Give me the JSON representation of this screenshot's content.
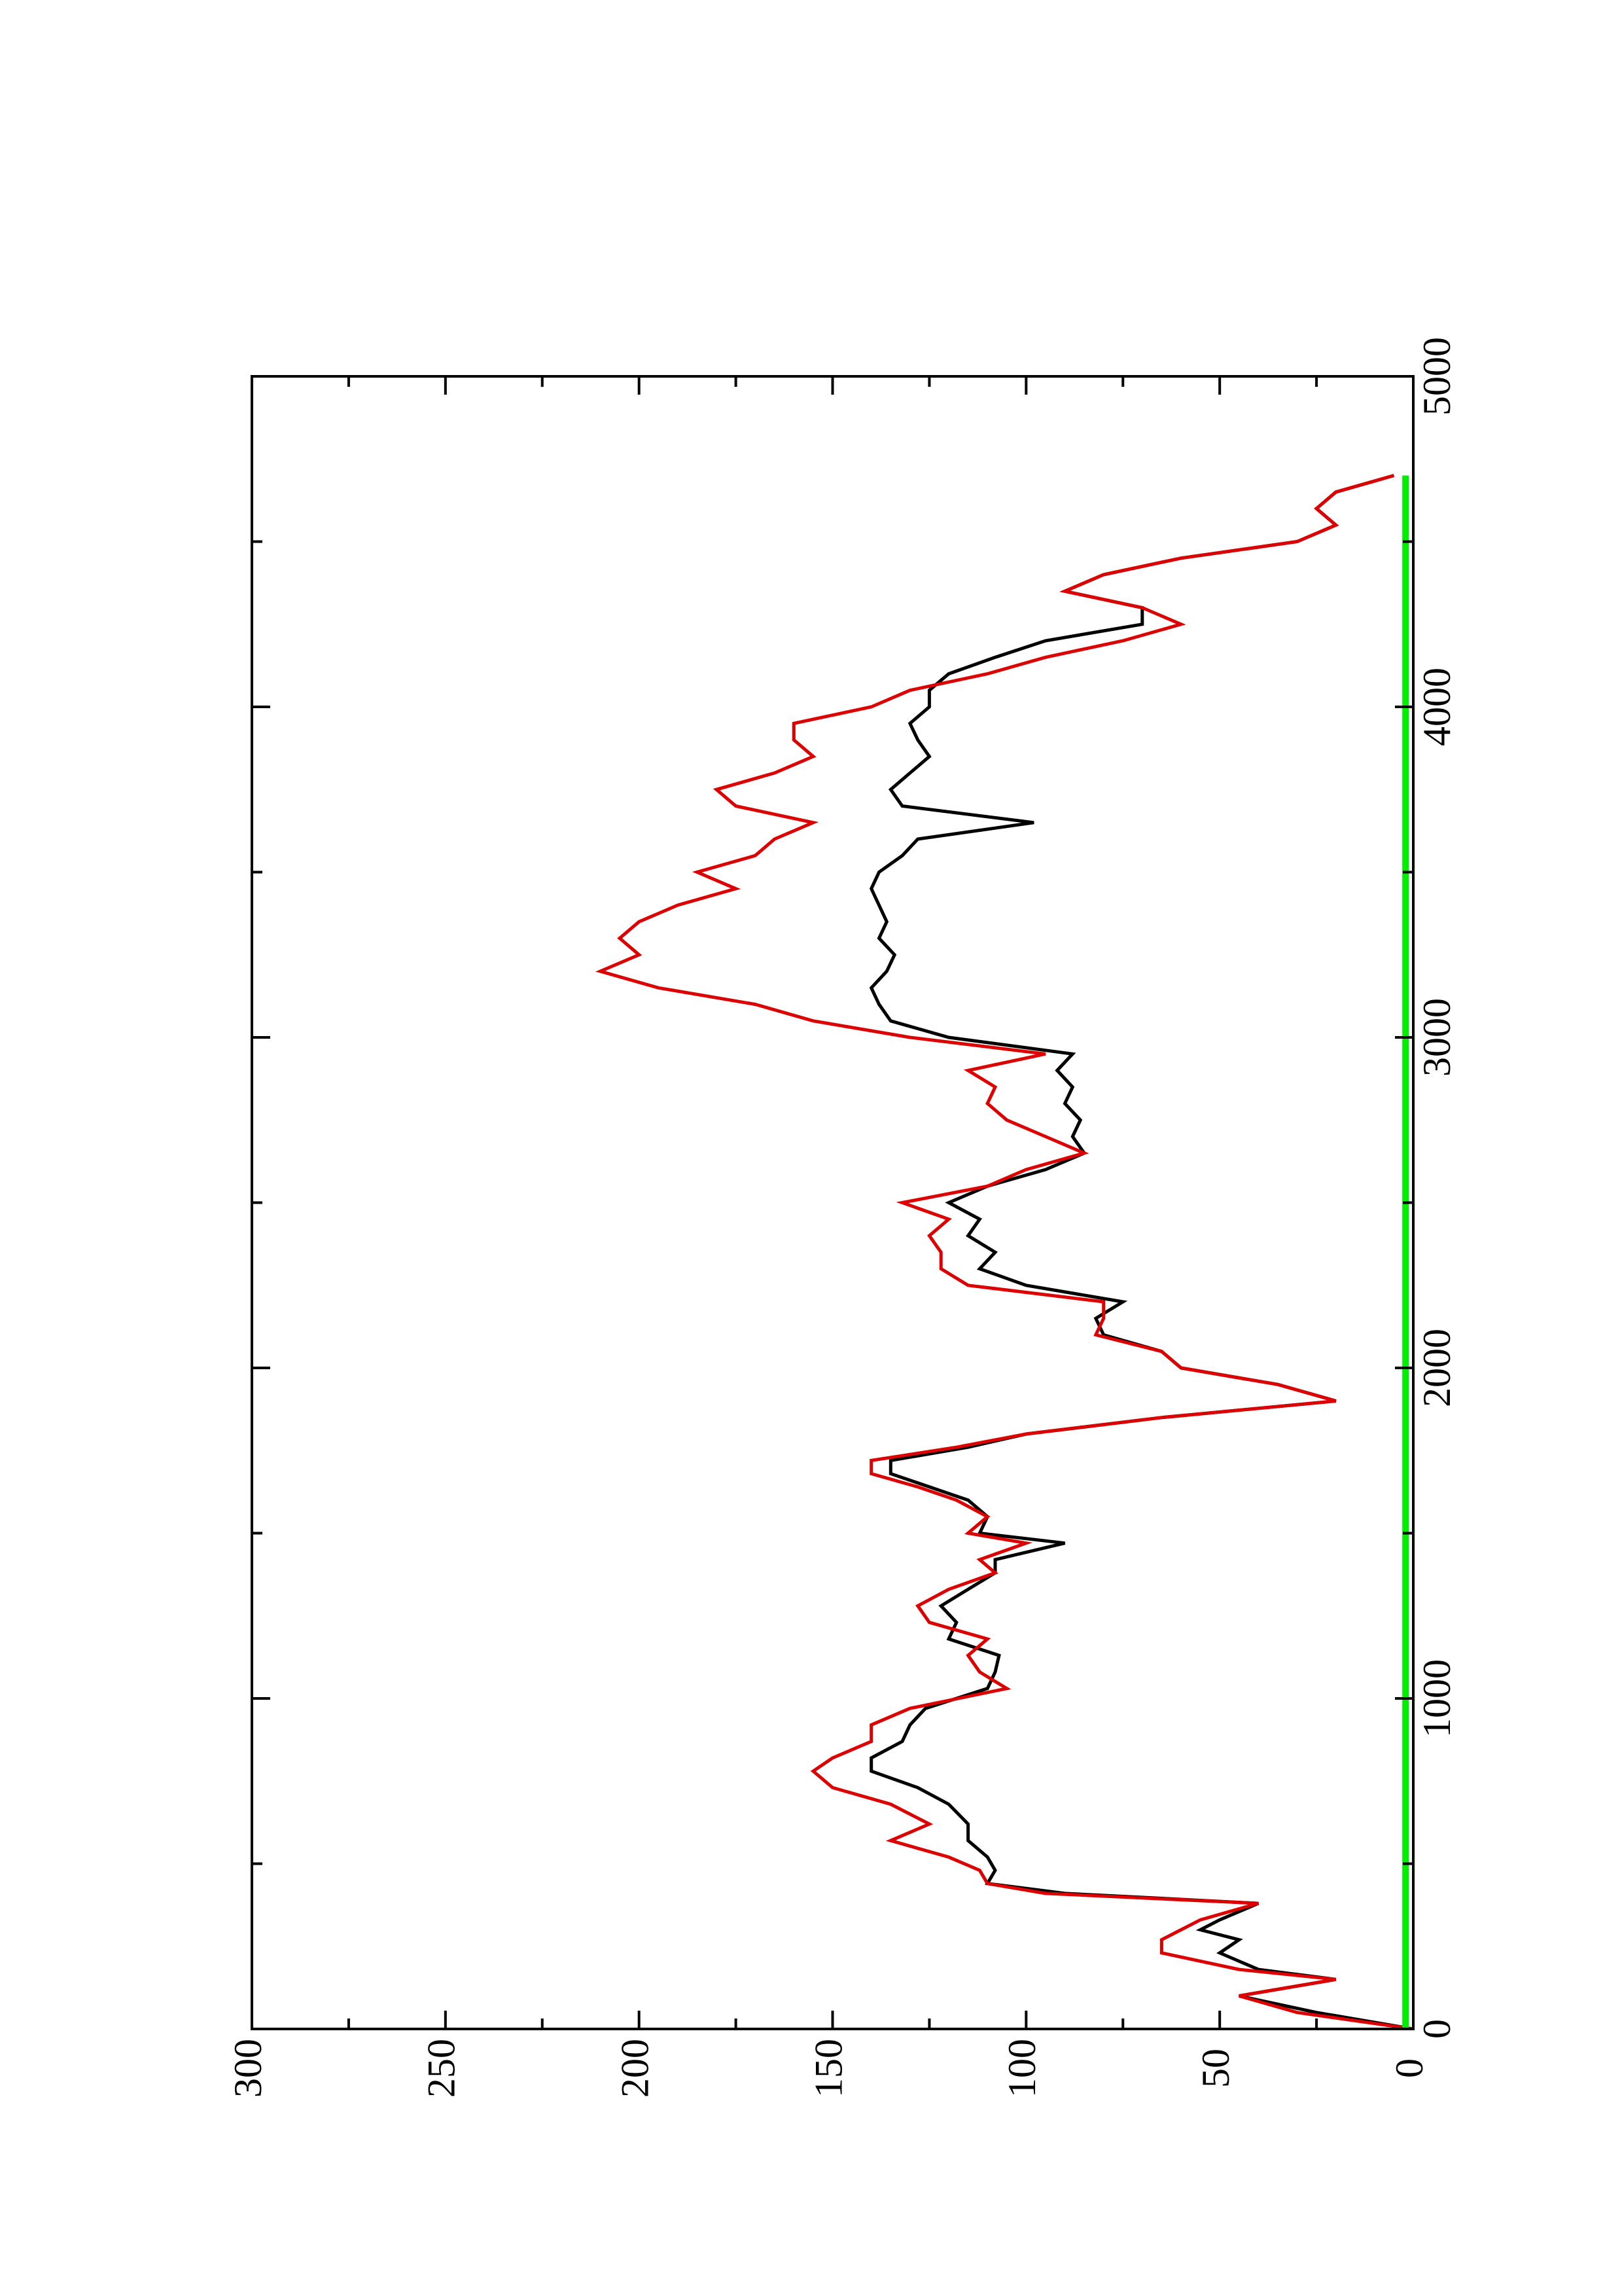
{
  "chart_data": {
    "type": "line",
    "orientation": "rotated-90-ccw",
    "title": "",
    "xlabel": "",
    "ylabel": "",
    "xlim": [
      0,
      5000
    ],
    "ylim": [
      0,
      300
    ],
    "x_ticks": [
      0,
      1000,
      2000,
      3000,
      4000,
      5000
    ],
    "x_tick_labels": [
      "0",
      "1000",
      "2000",
      "3000",
      "4000",
      "5000"
    ],
    "y_ticks": [
      0,
      50,
      100,
      150,
      200,
      250,
      300
    ],
    "y_tick_labels": [
      "0",
      "50",
      "100",
      "150",
      "200",
      "250",
      "300"
    ],
    "grid": false,
    "legend": "none",
    "series": [
      {
        "color": "#000000",
        "x": [
          0,
          50,
          100,
          150,
          180,
          230,
          270,
          300,
          330,
          380,
          410,
          440,
          480,
          520,
          570,
          620,
          680,
          730,
          780,
          820,
          870,
          920,
          970,
          1030,
          1080,
          1130,
          1180,
          1230,
          1280,
          1330,
          1380,
          1420,
          1470,
          1500,
          1550,
          1600,
          1640,
          1680,
          1720,
          1760,
          1800,
          1850,
          1900,
          1950,
          2000,
          2050,
          2100,
          2150,
          2200,
          2250,
          2300,
          2350,
          2400,
          2450,
          2500,
          2550,
          2600,
          2650,
          2700,
          2750,
          2800,
          2850,
          2900,
          2950,
          3000,
          3050,
          3100,
          3150,
          3200,
          3250,
          3300,
          3350,
          3400,
          3450,
          3500,
          3550,
          3600,
          3650,
          3700,
          3750,
          3800,
          3850,
          3900,
          3950,
          4000,
          4050,
          4100,
          4150,
          4200,
          4250,
          4300,
          4350,
          4400,
          4450,
          4500,
          4550,
          4600,
          4650,
          4700
        ],
        "y": [
          0,
          25,
          45,
          20,
          40,
          50,
          45,
          55,
          50,
          40,
          90,
          110,
          108,
          110,
          115,
          115,
          120,
          128,
          140,
          140,
          132,
          130,
          126,
          110,
          108,
          107,
          120,
          118,
          122,
          115,
          108,
          108,
          90,
          112,
          110,
          115,
          125,
          135,
          135,
          115,
          100,
          65,
          20,
          35,
          60,
          65,
          80,
          82,
          75,
          100,
          112,
          108,
          115,
          112,
          120,
          110,
          95,
          85,
          88,
          86,
          90,
          88,
          92,
          88,
          120,
          135,
          138,
          140,
          136,
          134,
          138,
          136,
          138,
          140,
          138,
          132,
          128,
          98,
          132,
          135,
          130,
          125,
          128,
          130,
          125,
          125,
          120,
          108,
          95,
          70,
          70,
          90,
          80,
          60,
          30,
          20,
          25,
          20,
          5
        ]
      },
      {
        "color": "#dd0000",
        "x": [
          0,
          50,
          100,
          150,
          180,
          230,
          270,
          300,
          330,
          380,
          410,
          440,
          480,
          520,
          570,
          620,
          680,
          730,
          780,
          820,
          870,
          920,
          970,
          1030,
          1080,
          1130,
          1180,
          1230,
          1280,
          1330,
          1380,
          1420,
          1470,
          1500,
          1550,
          1600,
          1640,
          1680,
          1720,
          1760,
          1800,
          1850,
          1900,
          1950,
          2000,
          2050,
          2100,
          2150,
          2200,
          2250,
          2300,
          2350,
          2400,
          2450,
          2500,
          2550,
          2600,
          2650,
          2700,
          2750,
          2800,
          2850,
          2900,
          2950,
          3000,
          3050,
          3100,
          3150,
          3200,
          3250,
          3300,
          3350,
          3400,
          3450,
          3500,
          3550,
          3600,
          3650,
          3700,
          3750,
          3800,
          3850,
          3900,
          3950,
          4000,
          4050,
          4100,
          4150,
          4200,
          4250,
          4300,
          4350,
          4400,
          4450,
          4500,
          4550,
          4600,
          4650,
          4700
        ],
        "y": [
          0,
          30,
          45,
          20,
          45,
          65,
          65,
          60,
          55,
          40,
          95,
          110,
          112,
          120,
          135,
          125,
          135,
          150,
          155,
          150,
          140,
          140,
          130,
          105,
          112,
          115,
          110,
          125,
          128,
          120,
          108,
          112,
          100,
          115,
          110,
          118,
          128,
          140,
          140,
          118,
          100,
          65,
          20,
          35,
          60,
          65,
          82,
          80,
          80,
          115,
          122,
          122,
          125,
          120,
          132,
          110,
          100,
          85,
          95,
          105,
          110,
          108,
          115,
          95,
          130,
          155,
          170,
          195,
          210,
          200,
          205,
          200,
          190,
          175,
          185,
          170,
          165,
          155,
          175,
          180,
          165,
          155,
          160,
          160,
          140,
          130,
          110,
          95,
          75,
          60,
          70,
          90,
          80,
          60,
          30,
          20,
          25,
          20,
          5
        ]
      },
      {
        "color": "#00ee00",
        "x": [
          0,
          4700
        ],
        "y": [
          2,
          2
        ]
      }
    ]
  }
}
